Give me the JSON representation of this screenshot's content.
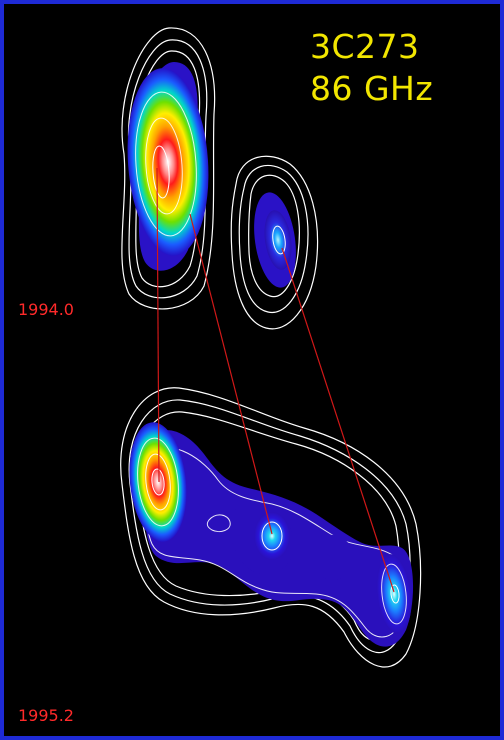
{
  "title": {
    "source": "3C273",
    "frequency": "86 GHz"
  },
  "epochs": {
    "first": "1994.0",
    "second": "1995.2"
  },
  "colors": {
    "border": "#1e2ad6",
    "title": "#f2e600",
    "epoch_label": "#ff2a2a",
    "contour": "#ffffff",
    "connector": "#d01818",
    "background": "#000000"
  }
}
